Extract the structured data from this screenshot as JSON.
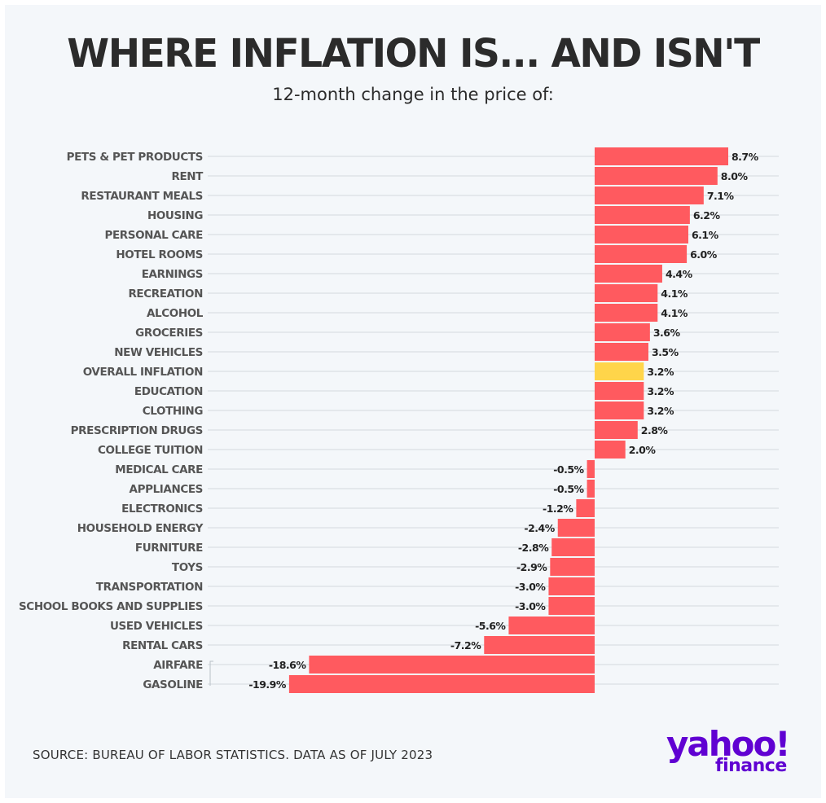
{
  "header": {
    "title": "WHERE INFLATION IS... AND ISN'T",
    "subtitle": "12-month change in the price of:"
  },
  "footer": {
    "source": "SOURCE: BUREAU OF LABOR STATISTICS. DATA AS OF JULY 2023",
    "logo_line1": "yahoo!",
    "logo_line2": "finance"
  },
  "colors": {
    "bar": "#ff5a5f",
    "highlight": "#ffd54a",
    "grid": "#d3d8de",
    "label": "#555555",
    "value": "#222222"
  },
  "chart_data": {
    "type": "bar",
    "orientation": "horizontal",
    "grid": true,
    "highlight_category": "OVERALL INFLATION",
    "categories": [
      "PETS & PET PRODUCTS",
      "RENT",
      "RESTAURANT MEALS",
      "HOUSING",
      "PERSONAL CARE",
      "HOTEL ROOMS",
      "EARNINGS",
      "RECREATION",
      "ALCOHOL",
      "GROCERIES",
      "NEW VEHICLES",
      "OVERALL INFLATION",
      "EDUCATION",
      "CLOTHING",
      "PRESCRIPTION DRUGS",
      "COLLEGE TUITION",
      "MEDICAL CARE",
      "APPLIANCES",
      "ELECTRONICS",
      "HOUSEHOLD ENERGY",
      "FURNITURE",
      "TOYS",
      "TRANSPORTATION",
      "SCHOOL BOOKS AND SUPPLIES",
      "USED VEHICLES",
      "RENTAL CARS",
      "AIRFARE",
      "GASOLINE"
    ],
    "values": [
      8.7,
      8.0,
      7.1,
      6.2,
      6.1,
      6.0,
      4.4,
      4.1,
      4.1,
      3.6,
      3.5,
      3.2,
      3.2,
      3.2,
      2.8,
      2.0,
      -0.5,
      -0.5,
      -1.2,
      -2.4,
      -2.8,
      -2.9,
      -3.0,
      -3.0,
      -5.6,
      -7.2,
      -18.6,
      -19.9
    ],
    "value_labels": [
      "8.7%",
      "8.0%",
      "7.1%",
      "6.2%",
      "6.1%",
      "6.0%",
      "4.4%",
      "4.1%",
      "4.1%",
      "3.6%",
      "3.5%",
      "3.2%",
      "3.2%",
      "3.2%",
      "2.8%",
      "2.0%",
      "-0.5%",
      "-0.5%",
      "-1.2%",
      "-2.4%",
      "-2.8%",
      "-2.9%",
      "-3.0%",
      "-3.0%",
      "-5.6%",
      "-7.2%",
      "-18.6%",
      "-19.9%"
    ],
    "xlim": [
      -19.9,
      8.7
    ]
  }
}
